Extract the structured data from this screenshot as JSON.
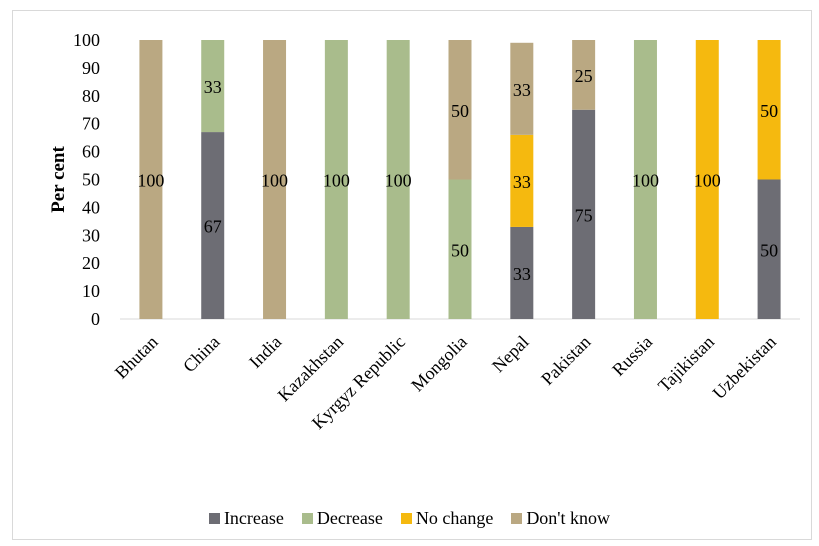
{
  "colors": {
    "Increase": "#6d6d74",
    "Decrease": "#a9bc8c",
    "No change": "#f5b90f",
    "Don't know": "#baa882"
  },
  "chart_data": {
    "type": "bar",
    "stacked": true,
    "title": "",
    "xlabel": "",
    "ylabel": "Per cent",
    "ylim": [
      0,
      100
    ],
    "yticks": [
      0,
      10,
      20,
      30,
      40,
      50,
      60,
      70,
      80,
      90,
      100
    ],
    "grid": false,
    "legend_position": "bottom",
    "categories": [
      "Bhutan",
      "China",
      "India",
      "Kazakhstan",
      "Kyrgyz Republic",
      "Mongolia",
      "Nepal",
      "Pakistan",
      "Russia",
      "Tajikistan",
      "Uzbekistan"
    ],
    "series": [
      {
        "name": "Increase",
        "values": [
          0,
          67,
          0,
          0,
          0,
          0,
          33,
          75,
          0,
          0,
          50
        ]
      },
      {
        "name": "Decrease",
        "values": [
          0,
          33,
          0,
          100,
          100,
          50,
          0,
          0,
          100,
          0,
          0
        ]
      },
      {
        "name": "No change",
        "values": [
          0,
          0,
          0,
          0,
          0,
          0,
          33,
          0,
          0,
          100,
          50
        ]
      },
      {
        "name": "Don't know",
        "values": [
          100,
          0,
          100,
          0,
          0,
          50,
          33,
          25,
          0,
          0,
          0
        ]
      }
    ]
  }
}
